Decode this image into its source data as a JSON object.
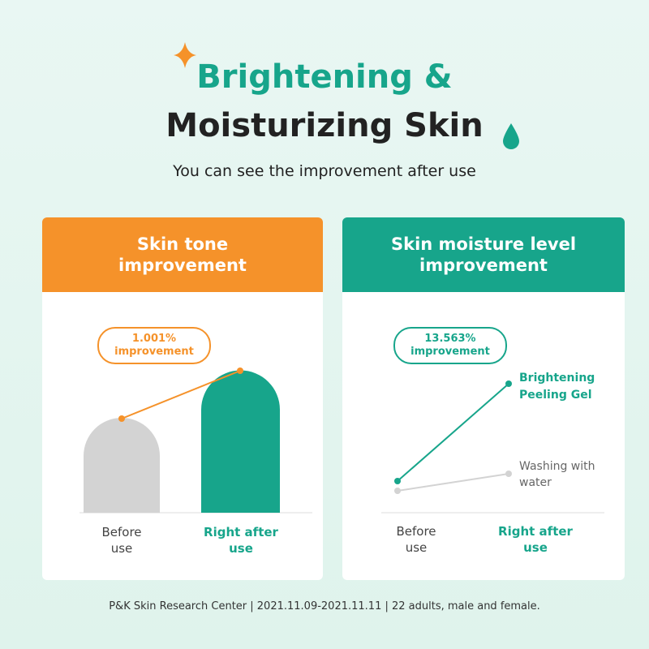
{
  "header": {
    "title_line1": "Brightening &",
    "title_line2": "Moisturizing Skin",
    "subtitle": "You can see the improvement after use"
  },
  "panels": [
    {
      "title": "Skin tone improvement",
      "annotation": "1.001% improvement",
      "labels": [
        "Before use",
        "Right after use"
      ]
    },
    {
      "title": "Skin moisture level improvement",
      "annotation": "13.563% improvement",
      "labels": [
        "Before use",
        "Right after use"
      ],
      "legend": [
        "Brightening Peeling Gel",
        "Washing with water"
      ]
    }
  ],
  "footer": "P&K Skin Research Center | 2021.11.09-2021.11.11 | 22 adults, male and female."
}
